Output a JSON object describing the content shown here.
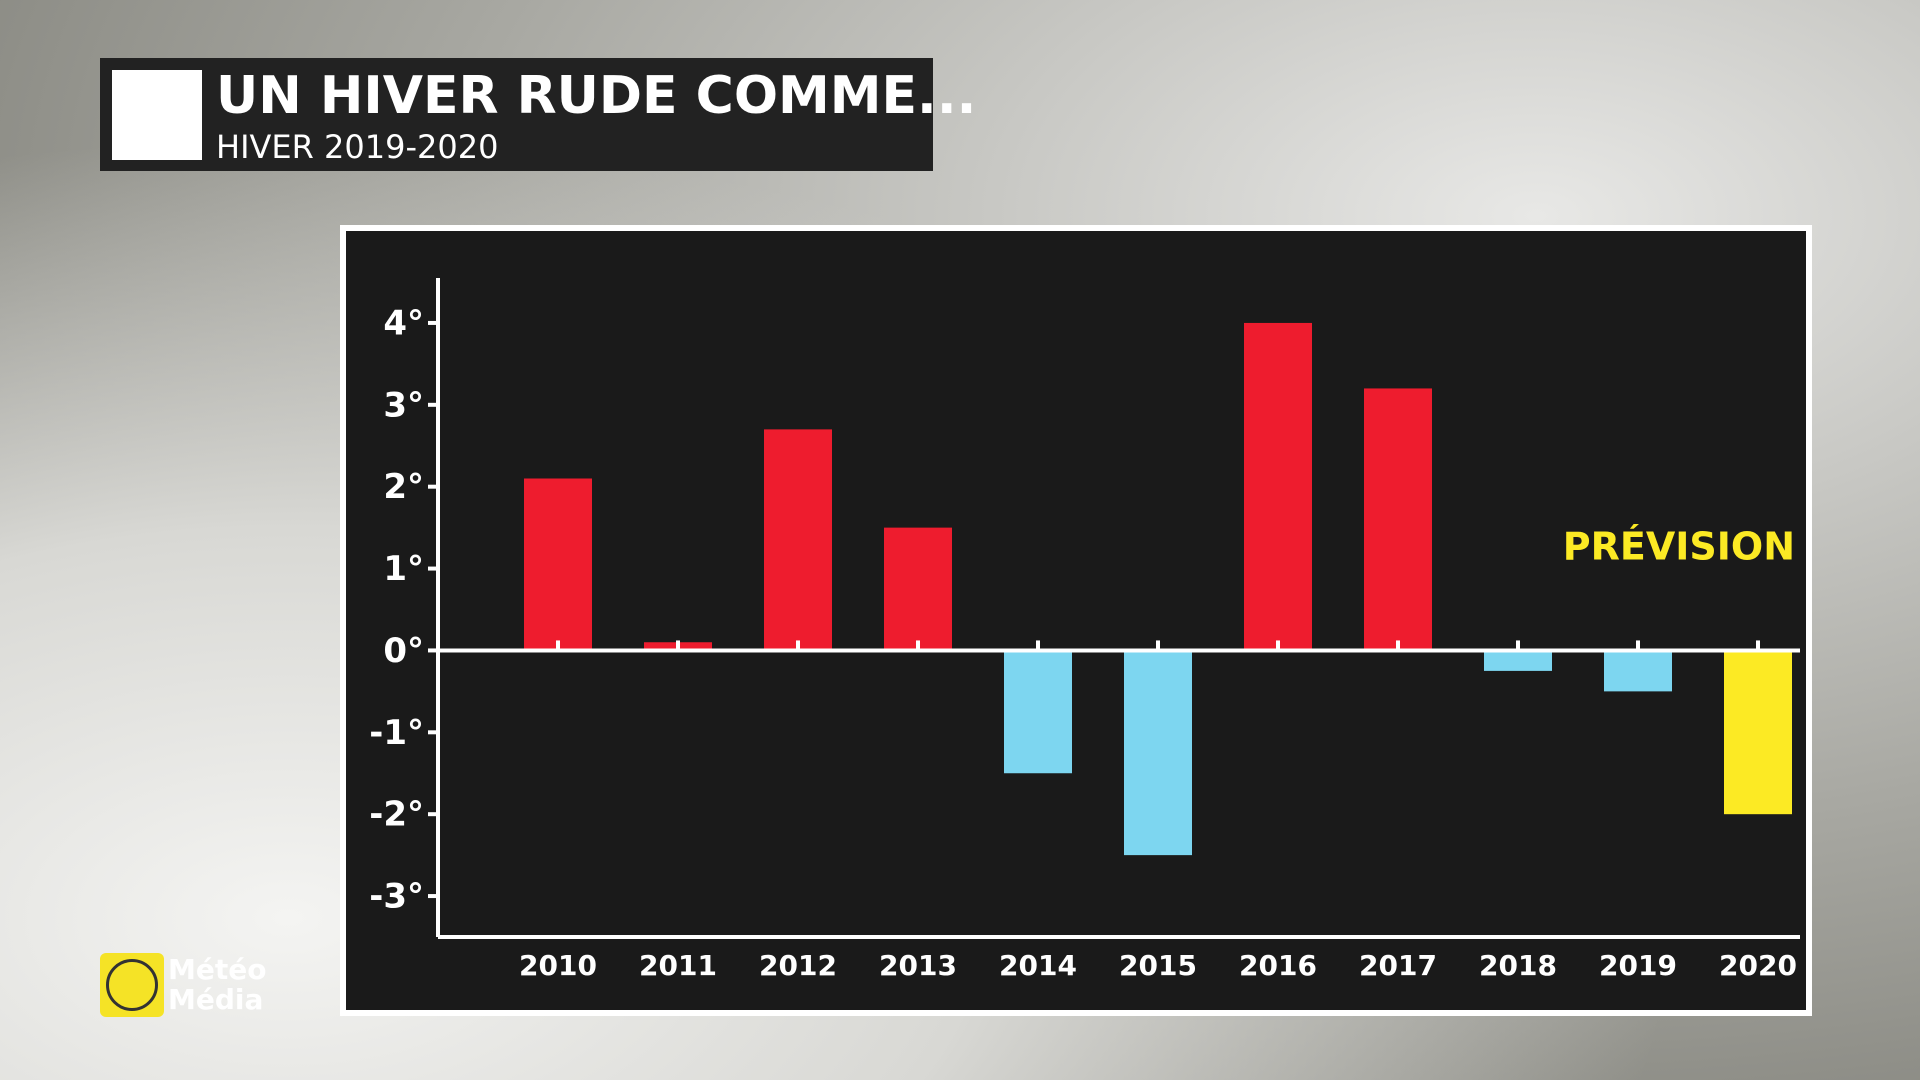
{
  "header": {
    "title": "UN HIVER RUDE COMME...",
    "subtitle": "HIVER 2019-2020"
  },
  "brand": {
    "line1": "Météo",
    "line2": "Média"
  },
  "chart_data": {
    "type": "bar",
    "categories": [
      "2010",
      "2011",
      "2012",
      "2013",
      "2014",
      "2015",
      "2016",
      "2017",
      "2018",
      "2019",
      "2020"
    ],
    "values": [
      2.1,
      0.1,
      2.7,
      1.5,
      -1.5,
      -2.5,
      4.0,
      3.2,
      -0.25,
      -0.5,
      -2.0
    ],
    "colors": [
      "#ee1c2e",
      "#ee1c2e",
      "#ee1c2e",
      "#ee1c2e",
      "#7dd6f0",
      "#7dd6f0",
      "#ee1c2e",
      "#ee1c2e",
      "#7dd6f0",
      "#7dd6f0",
      "#fcea24"
    ],
    "ylim": [
      -3.5,
      4.5
    ],
    "yticks": [
      {
        "value": -3,
        "label": "-3°"
      },
      {
        "value": -2,
        "label": "-2°"
      },
      {
        "value": -1,
        "label": "-1°"
      },
      {
        "value": 0,
        "label": "0°"
      },
      {
        "value": 1,
        "label": "1°"
      },
      {
        "value": 2,
        "label": "2°"
      },
      {
        "value": 3,
        "label": "3°"
      },
      {
        "value": 4,
        "label": "4°"
      }
    ],
    "annotation": "PRÉVISION"
  }
}
